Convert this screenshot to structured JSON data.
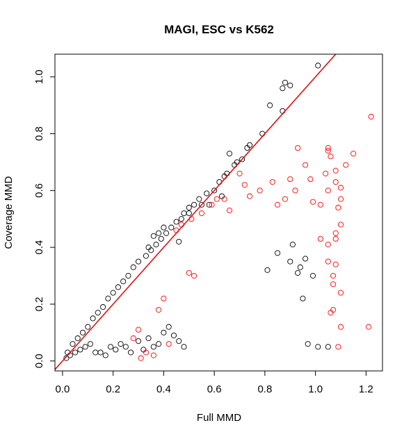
{
  "chart_data": {
    "type": "scatter",
    "title": "MAGI, ESC vs K562",
    "xlabel": "Full MMD",
    "ylabel": "Coverage MMD",
    "xlim": [
      -0.03,
      1.265
    ],
    "ylim": [
      -0.035,
      1.08
    ],
    "x_ticks": [
      "0.0",
      "0.2",
      "0.4",
      "0.6",
      "0.8",
      "1.0",
      "1.2"
    ],
    "y_ticks": [
      "0.0",
      "0.2",
      "0.4",
      "0.6",
      "0.8",
      "1.0"
    ],
    "grid": false,
    "legend": "none",
    "reference_line": {
      "slope": 1,
      "intercept": 0,
      "color": "#dd1111"
    },
    "series": [
      {
        "color": "#000000",
        "points": [
          [
            1.01,
            1.04
          ],
          [
            0.88,
            0.98
          ],
          [
            0.9,
            0.97
          ],
          [
            0.87,
            0.96
          ],
          [
            0.82,
            0.9
          ],
          [
            0.87,
            0.88
          ],
          [
            0.79,
            0.8
          ],
          [
            0.74,
            0.76
          ],
          [
            0.73,
            0.75
          ],
          [
            0.66,
            0.73
          ],
          [
            0.71,
            0.71
          ],
          [
            0.69,
            0.7
          ],
          [
            0.68,
            0.69
          ],
          [
            0.65,
            0.66
          ],
          [
            0.64,
            0.65
          ],
          [
            0.62,
            0.63
          ],
          [
            0.6,
            0.6
          ],
          [
            0.57,
            0.59
          ],
          [
            0.54,
            0.57
          ],
          [
            0.52,
            0.55
          ],
          [
            0.5,
            0.54
          ],
          [
            0.48,
            0.52
          ],
          [
            0.47,
            0.5
          ],
          [
            0.45,
            0.49
          ],
          [
            0.43,
            0.47
          ],
          [
            0.63,
            0.58
          ],
          [
            0.5,
            0.52
          ],
          [
            0.55,
            0.55
          ],
          [
            0.58,
            0.55
          ],
          [
            0.46,
            0.42
          ],
          [
            0.41,
            0.45
          ],
          [
            0.39,
            0.43
          ],
          [
            0.37,
            0.41
          ],
          [
            0.35,
            0.39
          ],
          [
            0.33,
            0.37
          ],
          [
            0.34,
            0.4
          ],
          [
            0.36,
            0.44
          ],
          [
            0.38,
            0.45
          ],
          [
            0.4,
            0.47
          ],
          [
            0.3,
            0.35
          ],
          [
            0.28,
            0.33
          ],
          [
            0.26,
            0.3
          ],
          [
            0.24,
            0.28
          ],
          [
            0.22,
            0.26
          ],
          [
            0.2,
            0.24
          ],
          [
            0.18,
            0.22
          ],
          [
            0.16,
            0.19
          ],
          [
            0.14,
            0.17
          ],
          [
            0.12,
            0.15
          ],
          [
            0.1,
            0.12
          ],
          [
            0.08,
            0.1
          ],
          [
            0.06,
            0.08
          ],
          [
            0.04,
            0.06
          ],
          [
            0.02,
            0.03
          ],
          [
            0.015,
            0.01
          ],
          [
            0.03,
            0.02
          ],
          [
            0.05,
            0.03
          ],
          [
            0.07,
            0.04
          ],
          [
            0.09,
            0.05
          ],
          [
            0.11,
            0.06
          ],
          [
            0.13,
            0.03
          ],
          [
            0.15,
            0.03
          ],
          [
            0.17,
            0.02
          ],
          [
            0.19,
            0.05
          ],
          [
            0.21,
            0.04
          ],
          [
            0.23,
            0.06
          ],
          [
            0.25,
            0.05
          ],
          [
            0.27,
            0.03
          ],
          [
            0.3,
            0.07
          ],
          [
            0.32,
            0.04
          ],
          [
            0.34,
            0.08
          ],
          [
            0.36,
            0.05
          ],
          [
            0.38,
            0.06
          ],
          [
            0.4,
            0.1
          ],
          [
            0.42,
            0.12
          ],
          [
            0.44,
            0.09
          ],
          [
            0.46,
            0.07
          ],
          [
            0.48,
            0.05
          ],
          [
            0.91,
            0.41
          ],
          [
            0.96,
            0.36
          ],
          [
            0.99,
            0.3
          ],
          [
            0.94,
            0.33
          ],
          [
            0.95,
            0.22
          ],
          [
            0.97,
            0.06
          ],
          [
            1.05,
            0.05
          ],
          [
            1.01,
            0.05
          ],
          [
            0.93,
            0.31
          ],
          [
            0.9,
            0.35
          ],
          [
            0.85,
            0.38
          ],
          [
            0.81,
            0.32
          ]
        ]
      },
      {
        "color": "#ff0000",
        "points": [
          [
            1.22,
            0.86
          ],
          [
            1.05,
            0.75
          ],
          [
            1.05,
            0.74
          ],
          [
            0.93,
            0.75
          ],
          [
            1.15,
            0.73
          ],
          [
            1.06,
            0.72
          ],
          [
            1.12,
            0.69
          ],
          [
            0.96,
            0.69
          ],
          [
            1.08,
            0.67
          ],
          [
            1.04,
            0.66
          ],
          [
            0.98,
            0.64
          ],
          [
            0.9,
            0.64
          ],
          [
            1.08,
            0.63
          ],
          [
            1.1,
            0.61
          ],
          [
            1.05,
            0.6
          ],
          [
            0.83,
            0.63
          ],
          [
            0.78,
            0.6
          ],
          [
            0.74,
            0.58
          ],
          [
            0.72,
            0.62
          ],
          [
            0.7,
            0.66
          ],
          [
            0.92,
            0.6
          ],
          [
            1.1,
            0.57
          ],
          [
            1.09,
            0.54
          ],
          [
            1.02,
            0.55
          ],
          [
            0.99,
            0.56
          ],
          [
            0.88,
            0.57
          ],
          [
            0.85,
            0.55
          ],
          [
            0.64,
            0.57
          ],
          [
            0.61,
            0.57
          ],
          [
            0.66,
            0.53
          ],
          [
            0.59,
            0.55
          ],
          [
            0.55,
            0.52
          ],
          [
            0.51,
            0.5
          ],
          [
            0.47,
            0.48
          ],
          [
            0.45,
            0.46
          ],
          [
            1.1,
            0.48
          ],
          [
            1.08,
            0.45
          ],
          [
            1.08,
            0.43
          ],
          [
            1.05,
            0.41
          ],
          [
            1.02,
            0.43
          ],
          [
            1.05,
            0.35
          ],
          [
            1.08,
            0.34
          ],
          [
            1.07,
            0.3
          ],
          [
            1.07,
            0.27
          ],
          [
            1.1,
            0.24
          ],
          [
            1.07,
            0.18
          ],
          [
            1.06,
            0.17
          ],
          [
            1.21,
            0.12
          ],
          [
            1.1,
            0.12
          ],
          [
            1.09,
            0.05
          ],
          [
            0.5,
            0.31
          ],
          [
            0.52,
            0.3
          ],
          [
            0.4,
            0.22
          ],
          [
            0.38,
            0.18
          ],
          [
            0.3,
            0.11
          ],
          [
            0.28,
            0.08
          ],
          [
            0.31,
            0.01
          ],
          [
            0.33,
            0.03
          ],
          [
            0.36,
            0.02
          ],
          [
            0.42,
            0.06
          ]
        ]
      }
    ]
  }
}
